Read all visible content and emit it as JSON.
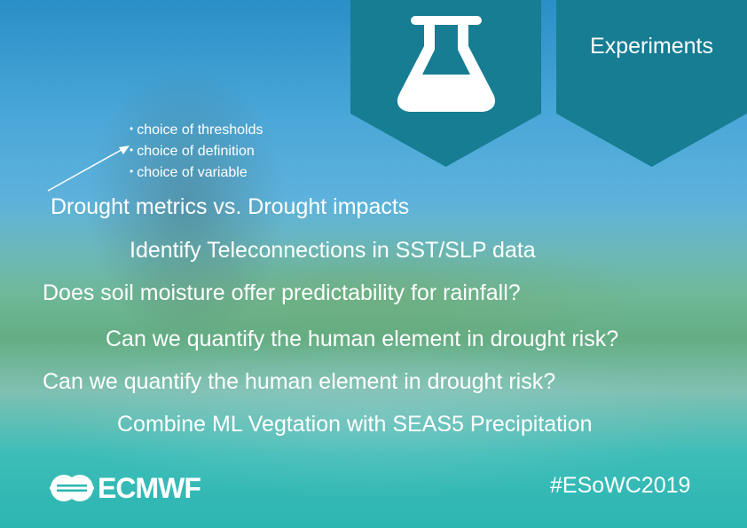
{
  "banner": {
    "icon_name": "flask-icon",
    "label": "Experiments",
    "color": "#167d93"
  },
  "bullets": [
    "choice of thresholds",
    "choice of definition",
    "choice of variable"
  ],
  "lines": [
    "Drought metrics vs. Drought impacts",
    "Identify Teleconnections in SST/SLP data",
    "Does soil moisture offer predictability for rainfall?",
    "Can we quantify the human element in drought risk?",
    "Can we quantify the human element in drought risk?",
    "Combine ML Vegtation with SEAS5 Precipitation"
  ],
  "footer": {
    "logo_text": "ECMWF",
    "hashtag": "#ESoWC2019"
  }
}
